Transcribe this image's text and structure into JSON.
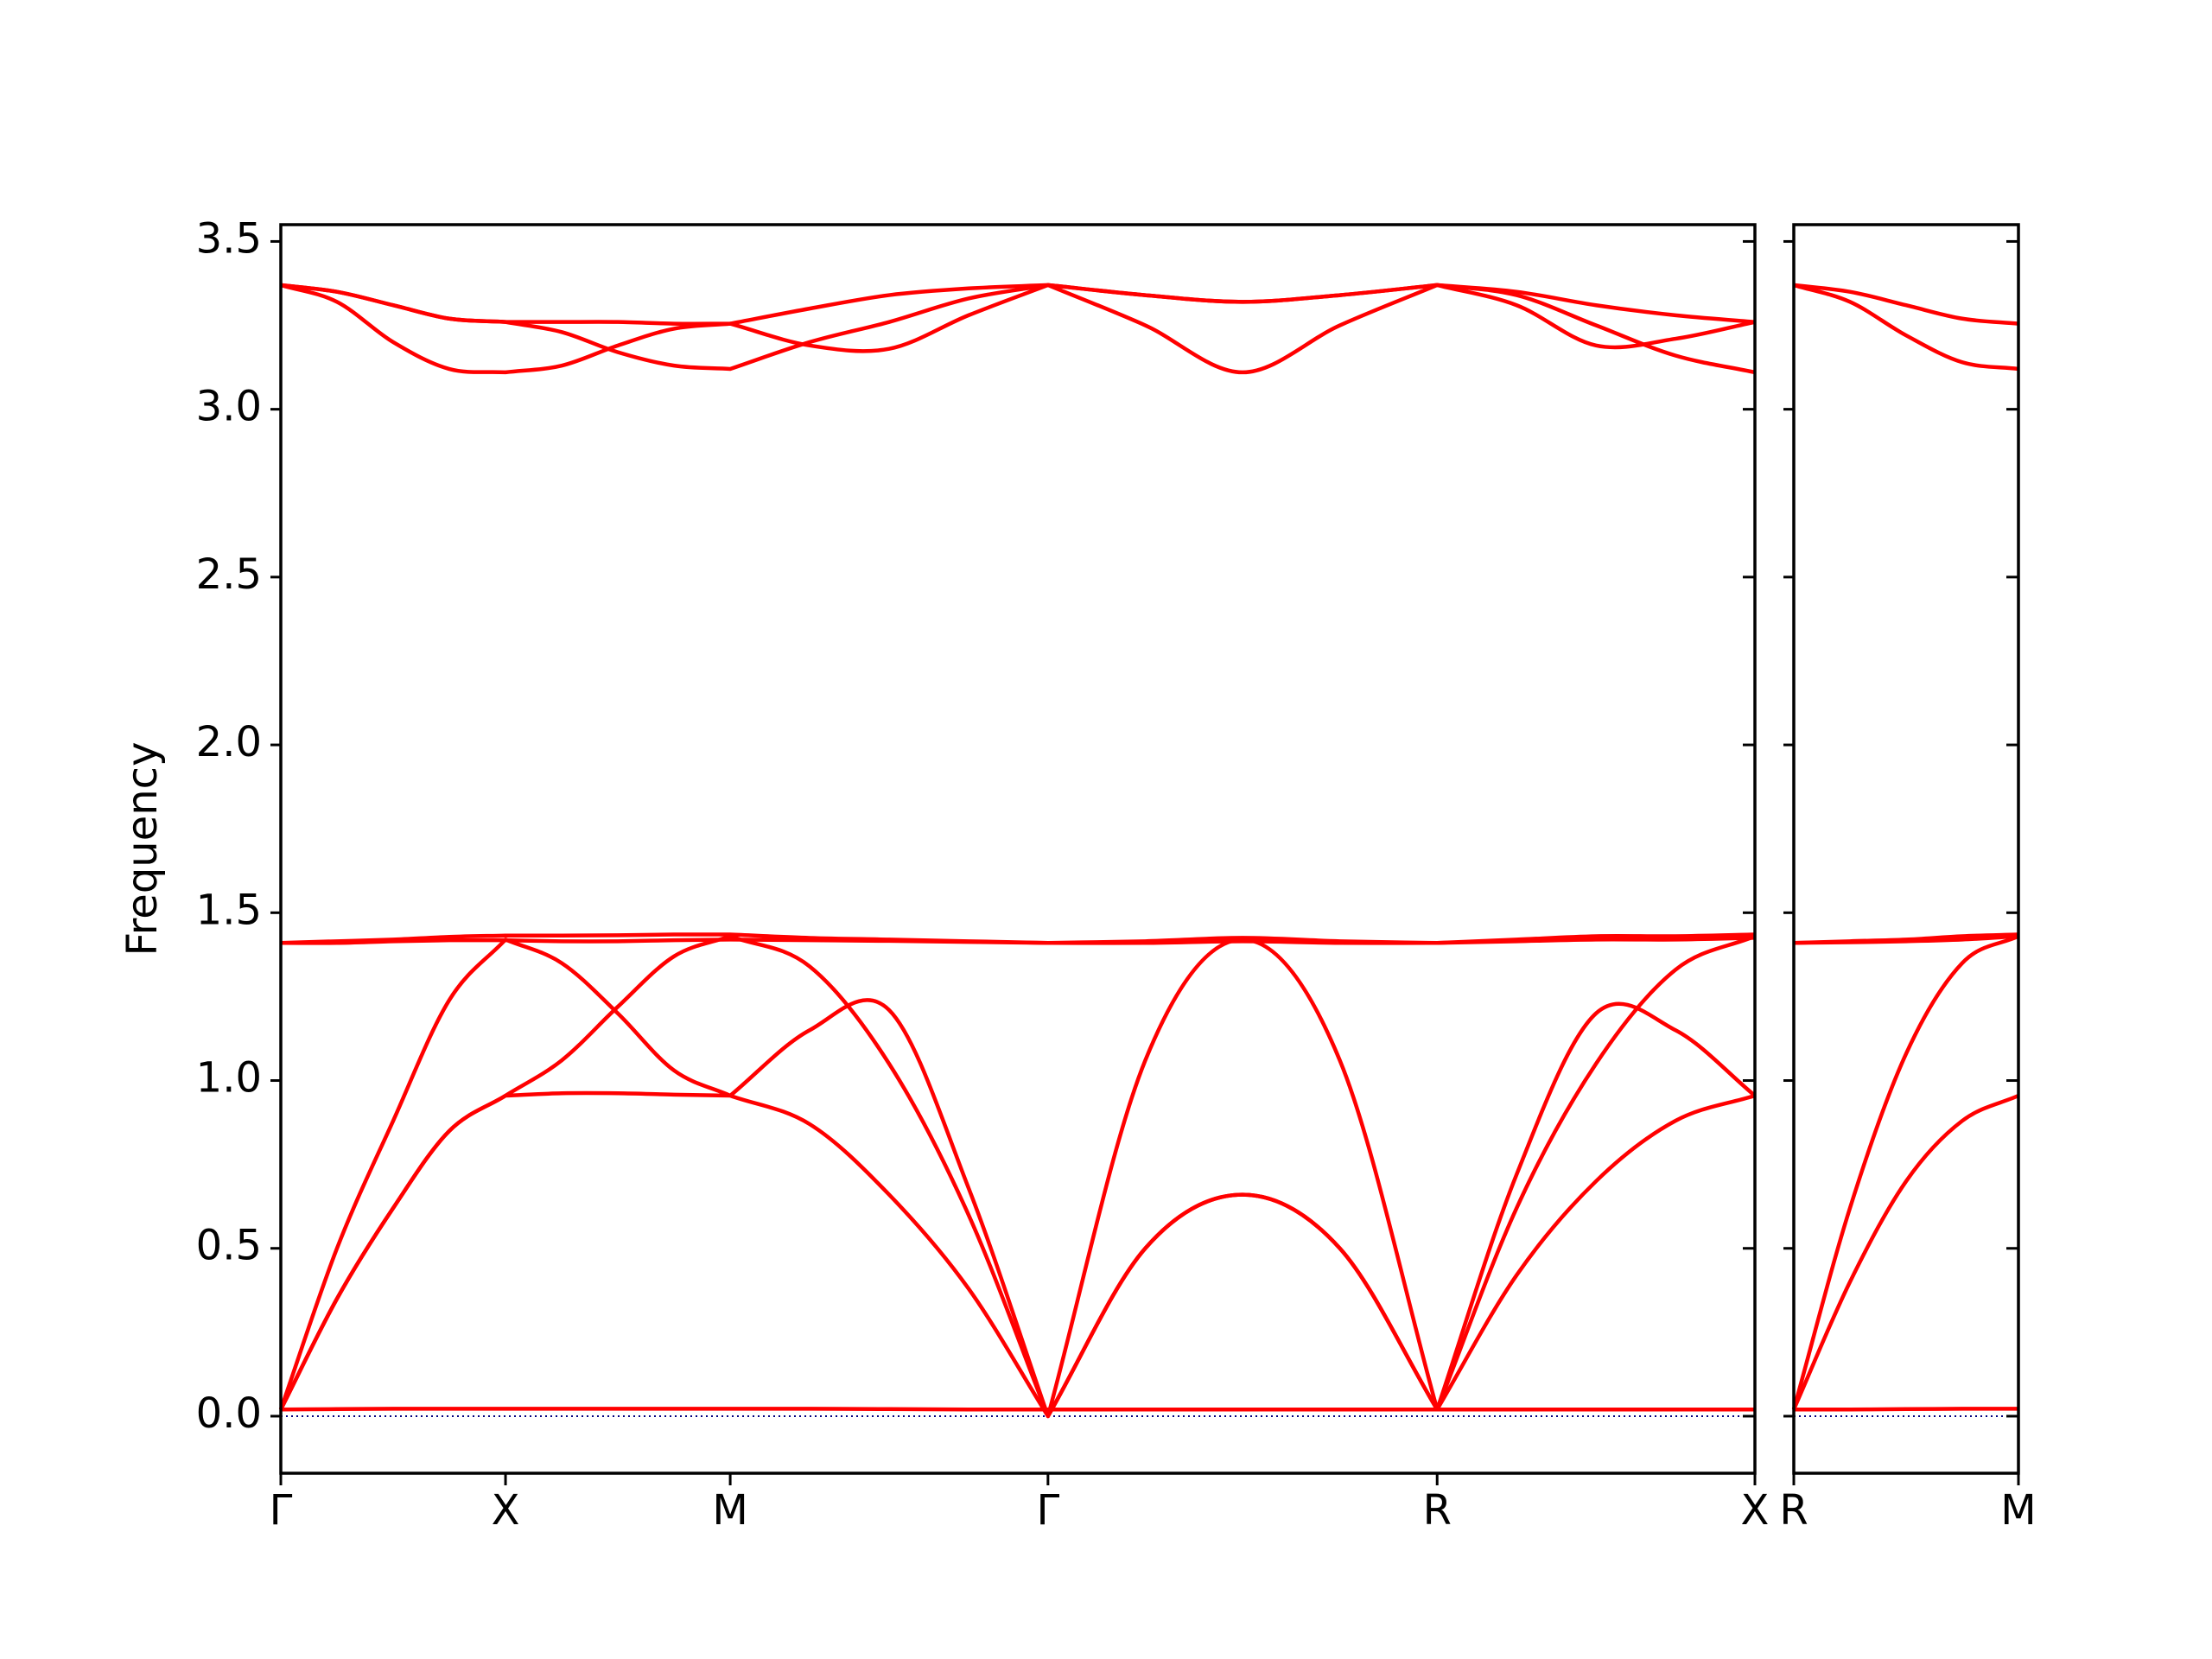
{
  "chart_data": [
    {
      "type": "line",
      "y_label": "Frequency",
      "x": [
        0,
        0.125,
        0.25,
        0.375,
        0.5,
        0.625,
        0.75,
        0.875,
        1.0,
        1.1768,
        1.3536,
        1.5303,
        1.7071,
        1.9236,
        2.1401,
        2.3566,
        2.5731,
        2.7499,
        2.9266,
        3.1034,
        3.2802
      ],
      "xlim": [
        0,
        3.2802
      ],
      "ylim": [
        -0.17,
        3.55
      ],
      "xticks": [
        {
          "value": 0,
          "label": "Γ"
        },
        {
          "value": 0.5,
          "label": "X"
        },
        {
          "value": 1.0,
          "label": "M"
        },
        {
          "value": 1.7071,
          "label": "Γ"
        },
        {
          "value": 2.5731,
          "label": "R"
        },
        {
          "value": 3.2802,
          "label": "X"
        }
      ],
      "yticks": [
        {
          "value": 0,
          "label": "0.0"
        },
        0.5,
        {
          "value": 1,
          "label": "1.0"
        },
        1.5,
        {
          "value": 2,
          "label": "2.0"
        },
        2.5,
        {
          "value": 3,
          "label": "3.0"
        },
        3.5
      ],
      "hlines": [
        {
          "y": 0,
          "color": "#000080",
          "style": "dotted"
        }
      ],
      "series": [
        {
          "color": "#ff0000",
          "values": [
            3.37,
            3.35,
            3.31,
            3.27,
            3.26,
            3.26,
            3.26,
            3.255,
            3.255,
            3.3,
            3.34,
            3.36,
            3.37,
            3.34,
            3.32,
            3.34,
            3.37,
            3.35,
            3.31,
            3.28,
            3.26
          ]
        },
        {
          "color": "#ff0000",
          "values": [
            3.37,
            3.35,
            3.31,
            3.27,
            3.26,
            3.23,
            3.17,
            3.13,
            3.12,
            3.2,
            3.26,
            3.33,
            3.37,
            3.34,
            3.32,
            3.34,
            3.37,
            3.31,
            3.19,
            3.21,
            3.26
          ]
        },
        {
          "color": "#ff0000",
          "values": [
            3.37,
            3.32,
            3.2,
            3.12,
            3.11,
            3.13,
            3.19,
            3.24,
            3.255,
            3.19,
            3.18,
            3.28,
            3.37,
            3.25,
            3.11,
            3.25,
            3.37,
            3.34,
            3.25,
            3.16,
            3.11
          ]
        },
        {
          "color": "#ff0000",
          "values": [
            1.41,
            1.415,
            1.42,
            1.428,
            1.432,
            1.432,
            1.433,
            1.435,
            1.435,
            1.425,
            1.42,
            1.415,
            1.41,
            1.415,
            1.425,
            1.415,
            1.41,
            1.42,
            1.43,
            1.43,
            1.435
          ]
        },
        {
          "color": "#ff0000",
          "values": [
            1.41,
            1.41,
            1.415,
            1.418,
            1.418,
            1.415,
            1.415,
            1.418,
            1.42,
            1.418,
            1.416,
            1.413,
            1.41,
            1.41,
            1.415,
            1.41,
            1.41,
            1.415,
            1.42,
            1.42,
            1.425
          ]
        },
        {
          "color": "#ff0000",
          "values": [
            0.02,
            0.5,
            0.88,
            1.24,
            1.42,
            1.35,
            1.2,
            1.03,
            0.955,
            1.15,
            1.21,
            0.68,
            0,
            1.06,
            1.42,
            1.06,
            0.02,
            0.72,
            1.2,
            1.15,
            0.955
          ]
        },
        {
          "color": "#ff0000",
          "values": [
            0.02,
            0.35,
            0.62,
            0.85,
            0.955,
            1.06,
            1.22,
            1.37,
            1.43,
            1.34,
            1.05,
            0.6,
            0,
            0.5,
            0.66,
            0.5,
            0.02,
            0.62,
            1.05,
            1.33,
            1.43
          ]
        },
        {
          "color": "#ff0000",
          "values": [
            0.02,
            0.35,
            0.62,
            0.85,
            0.955,
            0.962,
            0.962,
            0.958,
            0.955,
            0.87,
            0.66,
            0.38,
            0,
            0.5,
            0.66,
            0.5,
            0.02,
            0.42,
            0.7,
            0.88,
            0.955
          ]
        },
        {
          "color": "#ff0000",
          "values": [
            0.02,
            0.021,
            0.022,
            0.022,
            0.022,
            0.022,
            0.022,
            0.022,
            0.022,
            0.022,
            0.021,
            0.02,
            0.02,
            0.02,
            0.02,
            0.02,
            0.02,
            0.02,
            0.02,
            0.02,
            0.02
          ]
        }
      ]
    },
    {
      "type": "line",
      "x": [
        0,
        0.1768,
        0.3536,
        0.5303,
        0.7071
      ],
      "xlim": [
        0,
        0.7071
      ],
      "ylim": [
        -0.17,
        3.55
      ],
      "xticks": [
        {
          "value": 0,
          "label": "R"
        },
        {
          "value": 0.7071,
          "label": "M"
        }
      ],
      "yticks": [
        0,
        0.5,
        1,
        1.5,
        2,
        2.5,
        3,
        3.5
      ],
      "hlines": [
        {
          "y": 0,
          "color": "#000080",
          "style": "dotted"
        }
      ],
      "series": [
        {
          "color": "#ff0000",
          "values": [
            3.37,
            3.35,
            3.31,
            3.27,
            3.255
          ]
        },
        {
          "color": "#ff0000",
          "values": [
            3.37,
            3.32,
            3.22,
            3.14,
            3.12
          ]
        },
        {
          "color": "#ff0000",
          "values": [
            1.41,
            1.415,
            1.42,
            1.43,
            1.435
          ]
        },
        {
          "color": "#ff0000",
          "values": [
            1.41,
            1.412,
            1.415,
            1.42,
            1.43
          ]
        },
        {
          "color": "#ff0000",
          "values": [
            0.02,
            0.62,
            1.08,
            1.35,
            1.43
          ]
        },
        {
          "color": "#ff0000",
          "values": [
            0.02,
            0.4,
            0.7,
            0.88,
            0.955
          ]
        },
        {
          "color": "#ff0000",
          "values": [
            0.02,
            0.02,
            0.021,
            0.022,
            0.022
          ]
        }
      ]
    }
  ]
}
